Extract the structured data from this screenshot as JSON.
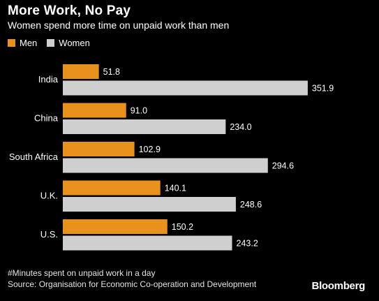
{
  "chart_data": {
    "type": "bar",
    "orientation": "horizontal",
    "title": "More Work, No Pay",
    "subtitle": "Women spend more time on unpaid work than men",
    "categories": [
      "India",
      "China",
      "South Africa",
      "U.K.",
      "U.S."
    ],
    "series": [
      {
        "name": "Men",
        "color": "#e8911c",
        "values": [
          51.8,
          91.0,
          102.9,
          140.1,
          150.2
        ]
      },
      {
        "name": "Women",
        "color": "#cfcfcf",
        "values": [
          351.9,
          234.0,
          294.6,
          248.6,
          243.2
        ]
      }
    ],
    "value_labels": {
      "Men": [
        "51.8",
        "91.0",
        "102.9",
        "140.1",
        "150.2"
      ],
      "Women": [
        "351.9",
        "234.0",
        "294.6",
        "248.6",
        "243.2"
      ]
    },
    "xlim": [
      0,
      355
    ],
    "grid": false,
    "legend_position": "top-left",
    "footnote": "#Minutes spent on unpaid work in a day",
    "source": "Source: Organisation for Economic Co-operation and Development",
    "brand": "Bloomberg"
  }
}
